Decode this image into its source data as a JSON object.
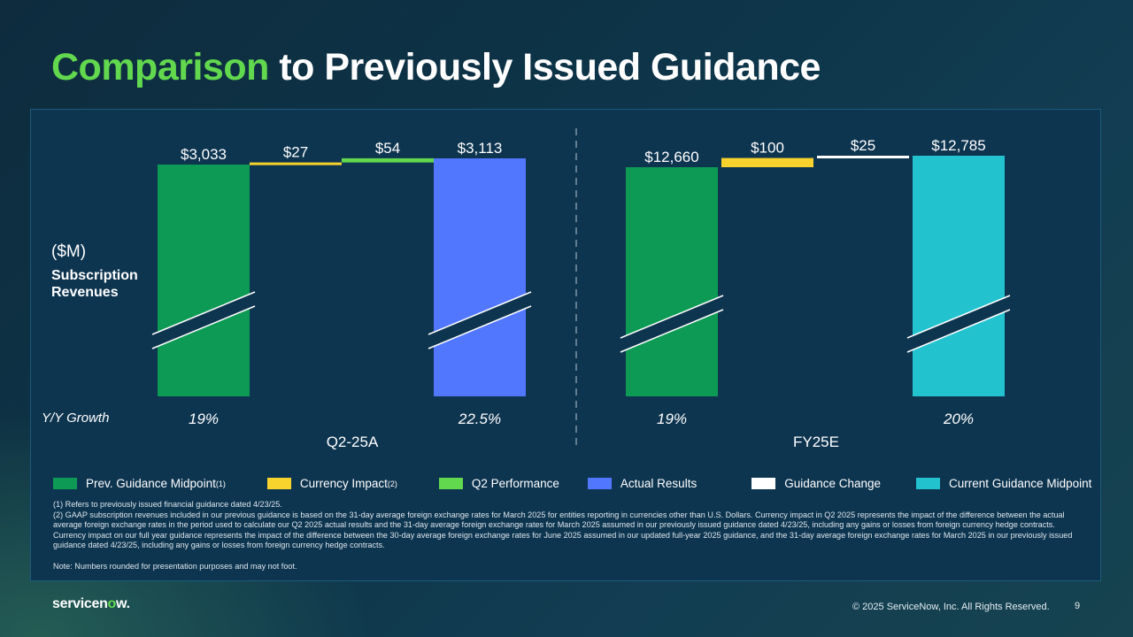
{
  "title": {
    "accent": "Comparison",
    "rest": "to Previously Issued Guidance"
  },
  "yaxis": {
    "unit": "($M)",
    "name_line1": "Subscription",
    "name_line2": "Revenues"
  },
  "growth_label": "Y/Y Growth",
  "colors": {
    "prev": "#0d9a54",
    "currency": "#f8d32e",
    "q2perf": "#62d84e",
    "actual": "#5277ff",
    "guidance_change": "#ffffff",
    "current": "#23c2cf"
  },
  "chart_data": {
    "type": "bar",
    "subtype": "waterfall-with-axis-break",
    "title": "Comparison to Previously Issued Guidance",
    "ylabel": "Subscription Revenues ($M)",
    "groups": [
      {
        "name": "Q2-25A",
        "bars": [
          {
            "label": "$3,033",
            "value": 3033,
            "kind": "total",
            "series": "Prev. Guidance Midpoint",
            "color": "#0d9a54"
          },
          {
            "label": "$27",
            "value": 27,
            "kind": "delta",
            "series": "Currency Impact",
            "color": "#f8d32e"
          },
          {
            "label": "$54",
            "value": 54,
            "kind": "delta",
            "series": "Q2 Performance",
            "color": "#62d84e"
          },
          {
            "label": "$3,113",
            "value": 3113,
            "kind": "total",
            "series": "Actual Results",
            "color": "#5277ff"
          }
        ],
        "growth": [
          "19%",
          "",
          "",
          "22.5%"
        ]
      },
      {
        "name": "FY25E",
        "bars": [
          {
            "label": "$12,660",
            "value": 12660,
            "kind": "total",
            "series": "Prev. Guidance Midpoint",
            "color": "#0d9a54"
          },
          {
            "label": "$100",
            "value": 100,
            "kind": "delta",
            "series": "Currency Impact",
            "color": "#f8d32e"
          },
          {
            "label": "$25",
            "value": 25,
            "kind": "delta",
            "series": "Guidance Change",
            "color": "#ffffff"
          },
          {
            "label": "$12,785",
            "value": 12785,
            "kind": "total",
            "series": "Current Guidance Midpoint",
            "color": "#23c2cf"
          }
        ],
        "growth": [
          "19%",
          "",
          "",
          "20%"
        ]
      }
    ]
  },
  "legend": [
    {
      "label": "Prev. Guidance Midpoint",
      "sup": "(1)",
      "color": "#0d9a54"
    },
    {
      "label": "Currency Impact",
      "sup": "(2)",
      "color": "#f8d32e"
    },
    {
      "label": "Q2 Performance",
      "sup": "",
      "color": "#62d84e"
    },
    {
      "label": "Actual Results",
      "sup": "",
      "color": "#5277ff"
    },
    {
      "label": "Guidance Change",
      "sup": "",
      "color": "#ffffff"
    },
    {
      "label": "Current Guidance Midpoint",
      "sup": "",
      "color": "#23c2cf"
    }
  ],
  "footnotes": {
    "note1": "(1) Refers to previously issued financial guidance dated 4/23/25.",
    "note2": "(2) GAAP subscription revenues included in our previous guidance is based on the 31-day average foreign exchange rates for March 2025 for entities reporting in currencies other than U.S. Dollars. Currency impact in Q2 2025 represents the impact of the difference between the actual average foreign exchange rates in the period used to calculate our Q2 2025 actual results and the 31-day average foreign exchange rates for March 2025 assumed in our previously issued guidance dated 4/23/25, including any gains or losses from foreign currency hedge contracts. Currency impact on our full year guidance represents the impact of the difference between the 30-day average foreign exchange rates for June 2025 assumed in our updated full-year 2025 guidance, and the 31-day average foreign exchange rates for March 2025 in our previously issued guidance dated 4/23/25, including any gains or losses from foreign currency hedge contracts.",
    "note3": "Note: Numbers rounded for presentation purposes and may not foot."
  },
  "footer": {
    "logo_main": "servicen",
    "logo_o": "o",
    "logo_end": "w.",
    "copyright": "© 2025 ServiceNow, Inc. All Rights Reserved.",
    "page": "9"
  }
}
